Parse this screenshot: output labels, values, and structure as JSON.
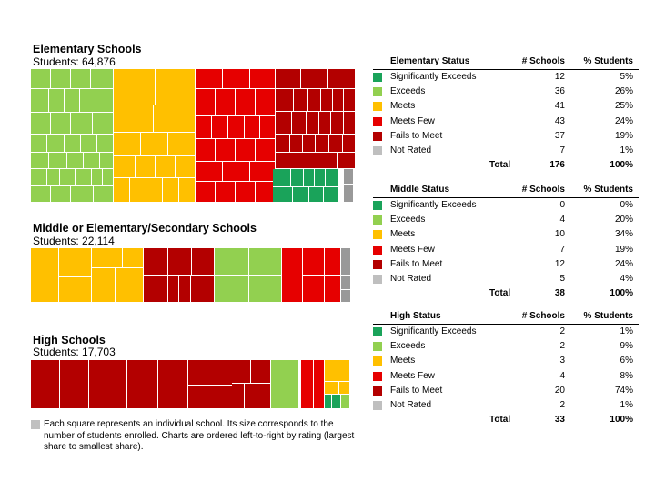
{
  "colors": {
    "Significantly Exceeds": "#1aa35a",
    "Exceeds": "#92d050",
    "Meets": "#ffc000",
    "Meets Few": "#e60000",
    "Fails to Meet": "#b30000",
    "Not Rated": "#999999"
  },
  "table_swatch_colors": [
    "#1aa35a",
    "#92d050",
    "#ffc000",
    "#e60000",
    "#b30000",
    "#bfbfbf"
  ],
  "col_headers": {
    "schools": "# Schools",
    "students": "% Students",
    "total": "Total"
  },
  "elementary": {
    "title": "Elementary Schools",
    "students_label": "Students:  64,876"
  },
  "middle": {
    "title": "Middle or Elementary/Secondary Schools",
    "students_label": "Students:  22,114"
  },
  "high": {
    "title": "High Schools",
    "students_label": "Students:  17,703"
  },
  "note": "Each square represents an individual school.  Its size corresponds to the number of students enrolled.  Charts are ordered left-to-right by rating (largest share to smallest share).",
  "chart_data": [
    {
      "type": "table",
      "title": "Elementary Status",
      "rows": [
        {
          "rating": "Significantly Exceeds",
          "schools": "12",
          "students": "5%"
        },
        {
          "rating": "Exceeds",
          "schools": "36",
          "students": "26%"
        },
        {
          "rating": "Meets",
          "schools": "41",
          "students": "25%"
        },
        {
          "rating": "Meets Few",
          "schools": "43",
          "students": "24%"
        },
        {
          "rating": "Fails to Meet",
          "schools": "37",
          "students": "19%"
        },
        {
          "rating": "Not Rated",
          "schools": "7",
          "students": "1%"
        }
      ],
      "total": {
        "label": "Total",
        "schools": "176",
        "students": "100%"
      }
    },
    {
      "type": "table",
      "title": "Middle Status",
      "rows": [
        {
          "rating": "Significantly Exceeds",
          "schools": "0",
          "students": "0%"
        },
        {
          "rating": "Exceeds",
          "schools": "4",
          "students": "20%"
        },
        {
          "rating": "Meets",
          "schools": "10",
          "students": "34%"
        },
        {
          "rating": "Meets Few",
          "schools": "7",
          "students": "19%"
        },
        {
          "rating": "Fails to Meet",
          "schools": "12",
          "students": "24%"
        },
        {
          "rating": "Not Rated",
          "schools": "5",
          "students": "4%"
        }
      ],
      "total": {
        "label": "Total",
        "schools": "38",
        "students": "100%"
      }
    },
    {
      "type": "table",
      "title": "High Status",
      "rows": [
        {
          "rating": "Significantly Exceeds",
          "schools": "2",
          "students": "1%"
        },
        {
          "rating": "Exceeds",
          "schools": "2",
          "students": "9%"
        },
        {
          "rating": "Meets",
          "schools": "3",
          "students": "6%"
        },
        {
          "rating": "Meets Few",
          "schools": "4",
          "students": "8%"
        },
        {
          "rating": "Fails to Meet",
          "schools": "20",
          "students": "74%"
        },
        {
          "rating": "Not Rated",
          "schools": "2",
          "students": "1%"
        }
      ],
      "total": {
        "label": "Total",
        "schools": "33",
        "students": "100%"
      }
    }
  ]
}
